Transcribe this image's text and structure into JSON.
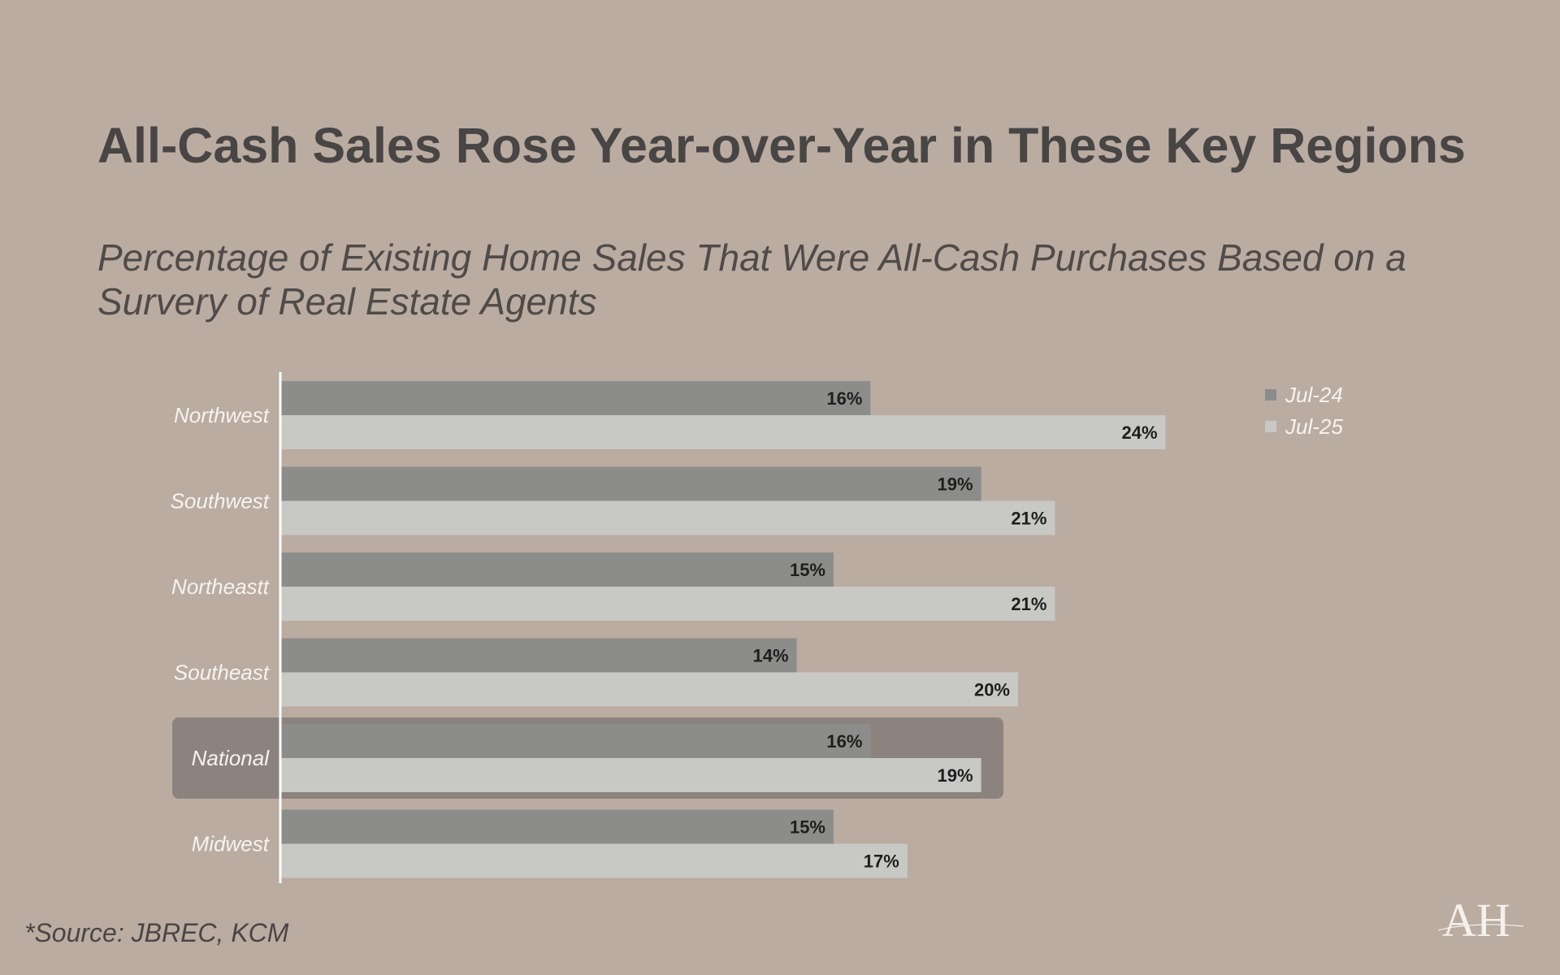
{
  "header": {
    "title": "All-Cash Sales Rose Year-over-Year in These Key Regions",
    "subtitle": "Percentage of Existing Home Sales That Were All-Cash Purchases Based on a Survery of Real Estate Agents"
  },
  "footer": {
    "source": "*Source: JBREC, KCM"
  },
  "logo": {
    "text": "AH"
  },
  "chart_data": {
    "type": "bar",
    "orientation": "horizontal",
    "categories": [
      "Northwest",
      "Southwest",
      "Northeastt",
      "Southeast",
      "National",
      "Midwest"
    ],
    "highlighted_category": "National",
    "series": [
      {
        "name": "Jul-24",
        "color": "#8c8d8b",
        "values": [
          16,
          19,
          15,
          14,
          16,
          15
        ],
        "labels": [
          "16%",
          "19%",
          "15%",
          "14%",
          "16%",
          "15%"
        ]
      },
      {
        "name": "Jul-25",
        "color": "#c8c8c5",
        "values": [
          24,
          21,
          21,
          20,
          19,
          17
        ],
        "labels": [
          "24%",
          "21%",
          "21%",
          "20%",
          "19%",
          "17%"
        ]
      }
    ],
    "unit": "%",
    "xlim": [
      0,
      24
    ],
    "legend": "top-right",
    "grid": false,
    "highlight_color": "#8c837f"
  }
}
